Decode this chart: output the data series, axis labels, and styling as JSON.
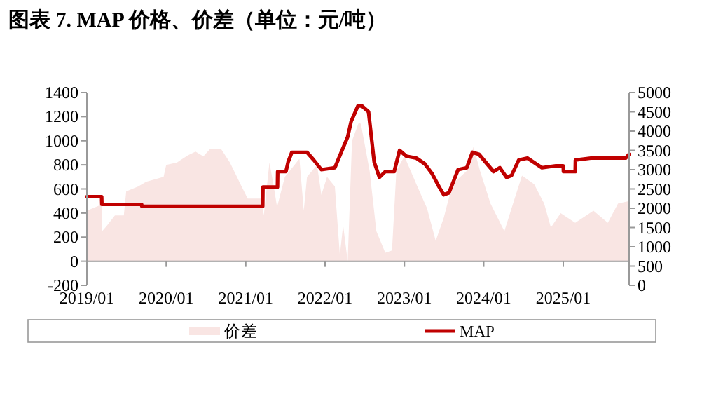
{
  "chart_data": {
    "type": "line",
    "title": "图表 7. MAP 价格、价差（单位：元/吨）",
    "series": [
      {
        "name": "价差",
        "type": "area",
        "color": "#f9e5e3",
        "x": [
          "2019-01-01",
          "2019-03-10",
          "2019-03-12",
          "2019-04-01",
          "2019-05-10",
          "2019-06-20",
          "2019-07-01",
          "2019-08-25",
          "2019-10-01",
          "2019-12-20",
          "2020-01-01",
          "2020-02-20",
          "2020-04-10",
          "2020-05-15",
          "2020-06-20",
          "2020-07-20",
          "2020-09-10",
          "2020-10-20",
          "2020-12-05",
          "2021-01-10",
          "2021-03-15",
          "2021-03-25",
          "2021-04-20",
          "2021-05-10",
          "2021-05-25",
          "2021-06-30",
          "2021-09-05",
          "2021-09-25",
          "2021-10-10",
          "2021-11-25",
          "2021-12-15",
          "2022-01-10",
          "2022-02-15",
          "2022-03-10",
          "2022-03-25",
          "2022-04-15",
          "2022-05-05",
          "2022-06-05",
          "2022-06-15",
          "2022-07-25",
          "2022-08-25",
          "2022-10-05",
          "2022-11-05",
          "2022-11-25",
          "2023-01-01",
          "2023-02-25",
          "2023-04-15",
          "2023-05-25",
          "2023-07-01",
          "2023-08-10",
          "2023-10-15",
          "2023-11-15",
          "2023-12-15",
          "2024-02-01",
          "2024-04-05",
          "2024-05-15",
          "2024-06-25",
          "2024-08-20",
          "2024-10-05",
          "2024-11-05",
          "2024-12-20",
          "2025-02-25",
          "2025-05-20",
          "2025-07-25",
          "2025-09-10",
          "2025-10-31"
        ],
        "values": [
          420,
          470,
          250,
          290,
          380,
          380,
          580,
          620,
          660,
          700,
          800,
          820,
          880,
          910,
          870,
          930,
          930,
          820,
          650,
          520,
          520,
          380,
          820,
          620,
          450,
          700,
          850,
          420,
          700,
          800,
          550,
          700,
          620,
          50,
          300,
          0,
          1000,
          1150,
          1140,
          750,
          250,
          70,
          90,
          750,
          870,
          640,
          440,
          170,
          360,
          640,
          750,
          950,
          750,
          480,
          250,
          480,
          710,
          640,
          480,
          280,
          400,
          320,
          420,
          320,
          480,
          500
        ]
      },
      {
        "name": "MAP",
        "axis": "y2",
        "color": "#c00000",
        "x": [
          "2019-01-01",
          "2019-03-10",
          "2019-03-11",
          "2019-09-10",
          "2019-09-11",
          "2021-03-20",
          "2021-03-21",
          "2021-05-27",
          "2021-05-28",
          "2021-07-05",
          "2021-07-15",
          "2021-08-01",
          "2021-10-10",
          "2021-11-10",
          "2021-12-15",
          "2022-02-15",
          "2022-03-20",
          "2022-04-15",
          "2022-05-01",
          "2022-06-01",
          "2022-06-20",
          "2022-07-20",
          "2022-08-15",
          "2022-09-08",
          "2022-10-05",
          "2022-11-15",
          "2022-12-10",
          "2023-01-10",
          "2023-02-25",
          "2023-04-05",
          "2023-05-08",
          "2023-06-10",
          "2023-07-01",
          "2023-07-25",
          "2023-09-05",
          "2023-10-15",
          "2023-11-10",
          "2023-12-10",
          "2024-02-15",
          "2024-03-15",
          "2024-04-15",
          "2024-05-08",
          "2024-06-10",
          "2024-07-20",
          "2024-09-25",
          "2024-11-28",
          "2025-01-01",
          "2025-01-02",
          "2025-02-25",
          "2025-02-26",
          "2025-05-08",
          "2025-10-15",
          "2025-10-31"
        ],
        "values": [
          2300,
          2300,
          2100,
          2100,
          2050,
          2050,
          2550,
          2550,
          2950,
          2950,
          3200,
          3450,
          3450,
          3250,
          3000,
          3050,
          3500,
          3850,
          4250,
          4650,
          4650,
          4500,
          3200,
          2800,
          2950,
          2950,
          3500,
          3350,
          3300,
          3150,
          2900,
          2550,
          2350,
          2400,
          3000,
          3050,
          3450,
          3400,
          2950,
          3050,
          2800,
          2850,
          3250,
          3300,
          3050,
          3100,
          3100,
          2950,
          2950,
          3250,
          3300,
          3300,
          3400
        ]
      }
    ],
    "xlim": [
      "2019-01-01",
      "2025-10-31"
    ],
    "xticks": [
      {
        "value": "2019-01-01",
        "label": "2019/01"
      },
      {
        "value": "2020-01-01",
        "label": "2020/01"
      },
      {
        "value": "2021-01-01",
        "label": "2021/01"
      },
      {
        "value": "2022-01-01",
        "label": "2022/01"
      },
      {
        "value": "2023-01-01",
        "label": "2023/01"
      },
      {
        "value": "2024-01-01",
        "label": "2024/01"
      },
      {
        "value": "2025-01-01",
        "label": "2025/01"
      }
    ],
    "ylim": [
      -200,
      1400
    ],
    "yticks": [
      -200,
      0,
      200,
      400,
      600,
      800,
      1000,
      1200,
      1400
    ],
    "y2lim": [
      0,
      5000
    ],
    "y2ticks": [
      0,
      500,
      1000,
      1500,
      2000,
      2500,
      3000,
      3500,
      4000,
      4500,
      5000
    ],
    "legend": "bottom"
  }
}
